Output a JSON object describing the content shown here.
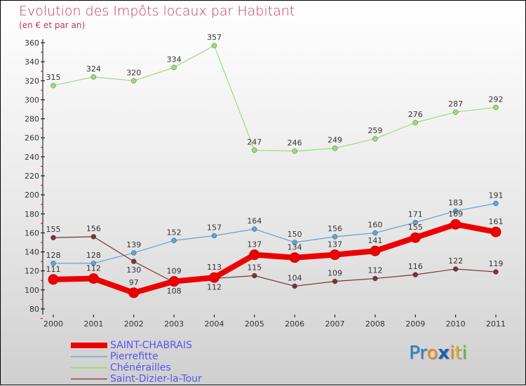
{
  "title": "Evolution des Impôts locaux par Habitant",
  "subtitle": "(en € et par an)",
  "logo": "Proxiti",
  "chart_data": {
    "type": "line",
    "title": "Evolution des Impôts locaux par Habitant",
    "subtitle": "(en € et par an)",
    "x": [
      "2000",
      "2001",
      "2002",
      "2003",
      "2004",
      "2005",
      "2006",
      "2007",
      "2008",
      "2009",
      "2010",
      "2011"
    ],
    "ylim": [
      80,
      360
    ],
    "yticks": [
      80,
      100,
      120,
      140,
      160,
      180,
      200,
      220,
      240,
      260,
      280,
      300,
      320,
      340,
      360
    ],
    "legend_position": "bottom-left",
    "series": [
      {
        "name": "SAINT-CHABRAIS",
        "color": "#ee0000",
        "values": [
          111,
          112,
          97,
          109,
          113,
          137,
          134,
          137,
          141,
          155,
          169,
          161
        ]
      },
      {
        "name": "Pierrefitte",
        "color": "#5fa3d6",
        "values": [
          128,
          128,
          139,
          152,
          157,
          164,
          150,
          156,
          160,
          171,
          183,
          191
        ]
      },
      {
        "name": "Chénérailles",
        "color": "#99dd77",
        "values": [
          315,
          324,
          320,
          334,
          357,
          247,
          246,
          249,
          259,
          276,
          287,
          292
        ]
      },
      {
        "name": "Saint-Dizier-la-Tour",
        "color": "#7a3333",
        "values": [
          155,
          156,
          130,
          108,
          112,
          115,
          104,
          109,
          112,
          116,
          122,
          119
        ]
      }
    ]
  }
}
